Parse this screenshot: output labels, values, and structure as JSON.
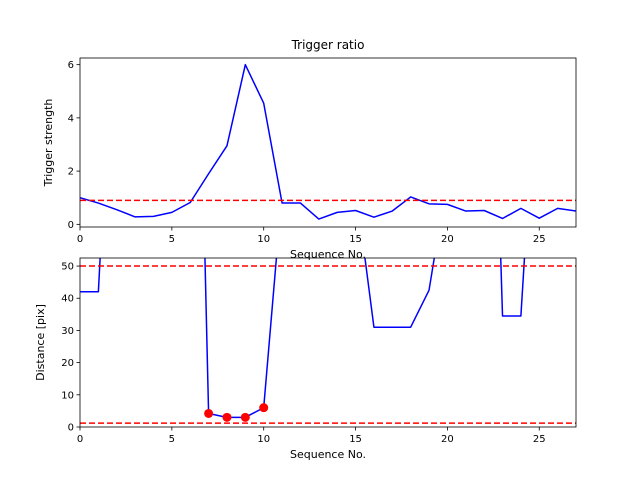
{
  "chart_data": [
    {
      "type": "line",
      "title": "Trigger ratio",
      "xlabel": "Sequence No.",
      "ylabel": "Trigger strength",
      "xlim": [
        0,
        27
      ],
      "ylim": [
        -0.1,
        6.25
      ],
      "xticks": [
        0,
        5,
        10,
        15,
        20,
        25
      ],
      "yticks": [
        0,
        2,
        4,
        6
      ],
      "grid": false,
      "series": [
        {
          "color": "#0000ff",
          "x": [
            0,
            1,
            2,
            3,
            4,
            5,
            6,
            7,
            8,
            9,
            10,
            11,
            12,
            13,
            14,
            15,
            16,
            17,
            18,
            19,
            20,
            21,
            22,
            23,
            24,
            25,
            26,
            27
          ],
          "y": [
            1.0,
            0.8,
            0.55,
            0.28,
            0.3,
            0.45,
            0.82,
            1.9,
            2.95,
            6.0,
            4.55,
            0.8,
            0.8,
            0.2,
            0.45,
            0.52,
            0.27,
            0.5,
            1.03,
            0.77,
            0.75,
            0.5,
            0.52,
            0.22,
            0.6,
            0.23,
            0.6,
            0.5
          ]
        }
      ],
      "hlines": [
        {
          "y": 0.9,
          "color": "#ff0000",
          "style": "dashed"
        }
      ]
    },
    {
      "type": "line",
      "title": "",
      "xlabel": "Sequence No.",
      "ylabel": "Distance [pix]",
      "xlim": [
        0,
        27
      ],
      "ylim": [
        0,
        52.5
      ],
      "xticks": [
        0,
        5,
        10,
        15,
        20,
        25
      ],
      "yticks": [
        0,
        10,
        20,
        30,
        40,
        50
      ],
      "grid": false,
      "series": [
        {
          "color": "#0000ff",
          "x": [
            0,
            1,
            1.1,
            6.8,
            7,
            8,
            9,
            10,
            10.7,
            15.5,
            16,
            17,
            18,
            19,
            19.3,
            22.9,
            23,
            24,
            24.2
          ],
          "y": [
            42,
            42,
            53,
            53,
            4.2,
            3.0,
            3.0,
            6.0,
            53,
            53,
            31,
            31,
            31,
            42.5,
            53,
            53,
            34.5,
            34.5,
            53
          ]
        }
      ],
      "points": [
        {
          "x": 7,
          "y": 4.2,
          "color": "#ff0000"
        },
        {
          "x": 8,
          "y": 3.0,
          "color": "#ff0000"
        },
        {
          "x": 9,
          "y": 3.0,
          "color": "#ff0000"
        },
        {
          "x": 10,
          "y": 6.0,
          "color": "#ff0000"
        }
      ],
      "hlines": [
        {
          "y": 50,
          "color": "#ff0000",
          "style": "dashed"
        },
        {
          "y": 1.2,
          "color": "#ff0000",
          "style": "dashed"
        }
      ]
    }
  ]
}
